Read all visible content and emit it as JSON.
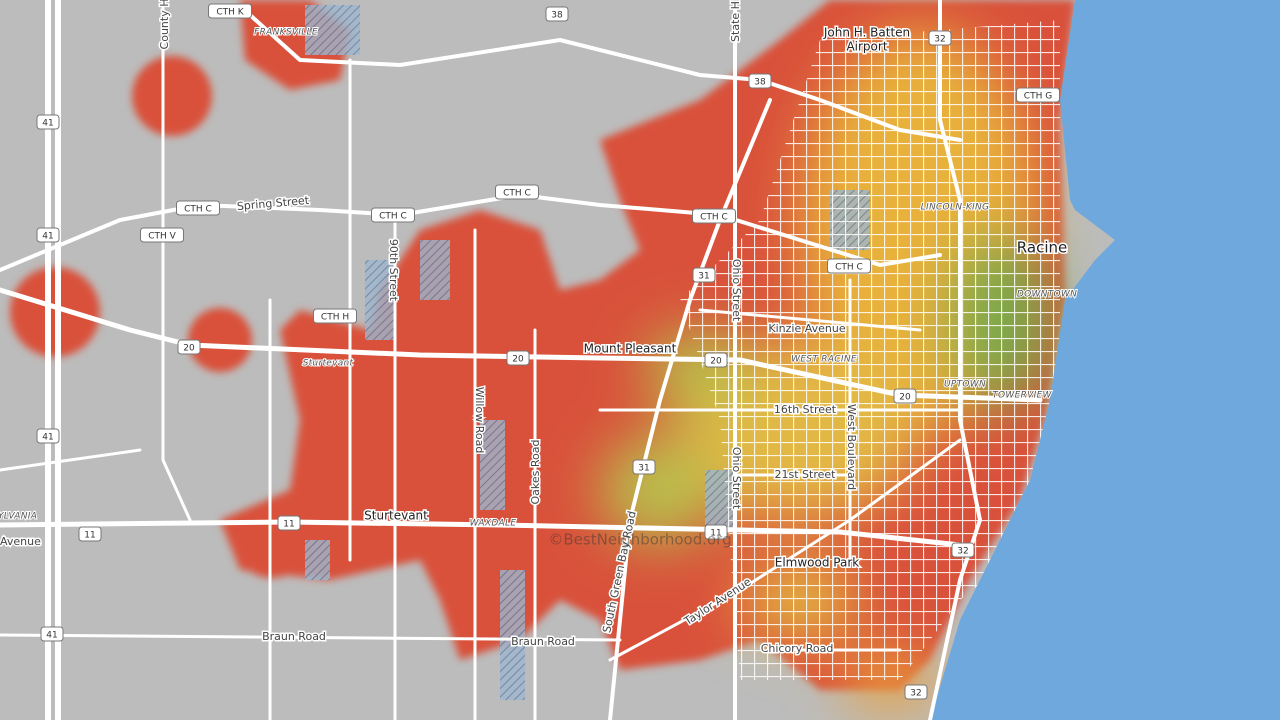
{
  "places": {
    "racine": "Racine",
    "mount_pleasant": "Mount Pleasant",
    "sturtevant": "Sturtevant",
    "elmwood_park": "Elmwood Park",
    "franksville": "FRANKSVILLE",
    "airport": [
      "John H. Batten",
      "Airport"
    ]
  },
  "neighborhoods": {
    "lincoln_king": "LINCOLN-KING",
    "downtown": "DOWNTOWN",
    "west_racine": "WEST RACINE",
    "uptown": "UPTOWN",
    "towerview": "TOWERVIEW",
    "waxdale": "WAXDALE",
    "sturtevant_small": "Sturtevant",
    "sylvania": "YLVANIA"
  },
  "roads": {
    "county_h": "County H",
    "state_hi": "State Hi",
    "spring_street": "Spring Street",
    "ninetieth_street": "90th Street",
    "ohio_street_north": "Ohio Street",
    "ohio_street_south": "Ohio Street",
    "kinzie_avenue": "Kinzie Avenue",
    "willow_road": "Willow Road",
    "sixteenth_street": "16th Street",
    "west_boulevard": "West Boulevard",
    "oakes_road": "Oakes Road",
    "twenty_first_street": "21st Street",
    "avenue_west": "Avenue",
    "south_green_bay_road": "South Green Bay Road",
    "taylor_avenue": "Taylor Avenue",
    "braun_road_west": "Braun Road",
    "braun_road_east": "Braun Road",
    "chicory_road": "Chicory Road"
  },
  "shields": [
    "CTH K",
    "38",
    "32",
    "38",
    "CTH G",
    "41",
    "CTH C",
    "CTH C",
    "CTH C",
    "CTH C",
    "CTH V",
    "41",
    "CTH C",
    "31",
    "CTH H",
    "20",
    "20",
    "20",
    "20",
    "41",
    "31",
    "11",
    "11",
    "11",
    "32",
    "41",
    "32"
  ],
  "watermark": "©BestNeighborhood.org"
}
